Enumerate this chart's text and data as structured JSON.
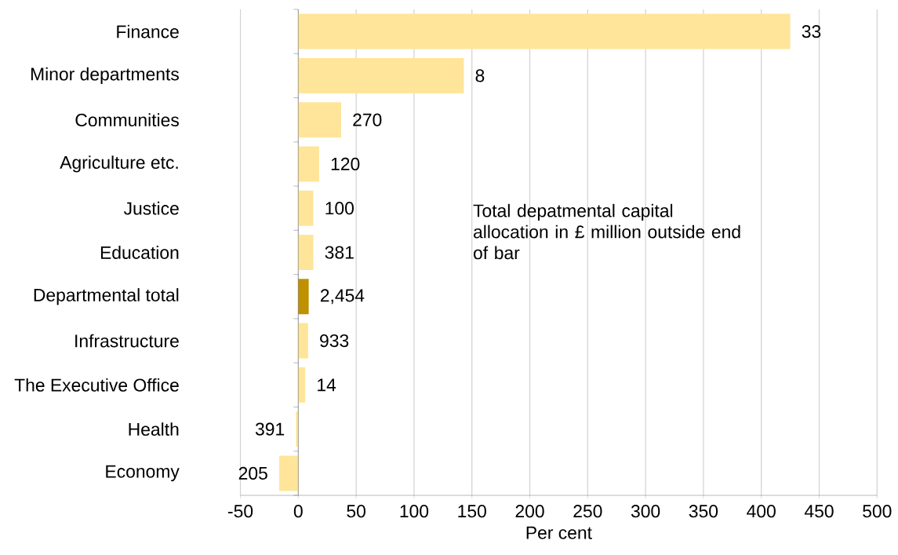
{
  "chart_data": {
    "type": "bar",
    "orientation": "horizontal",
    "xlabel": "Per cent",
    "categories": [
      "Finance",
      "Minor departments",
      "Communities",
      "Agriculture etc.",
      "Justice",
      "Education",
      "Departmental total",
      "Infrastructure",
      "The Executive Office",
      "Health",
      "Economy"
    ],
    "values": [
      425,
      143,
      37,
      18,
      13,
      13,
      9,
      8.5,
      6,
      -2,
      -16.5
    ],
    "colors": [
      "#ffe599",
      "#ffe599",
      "#ffe599",
      "#ffe599",
      "#ffe599",
      "#ffe599",
      "#bf9000",
      "#ffe599",
      "#ffe599",
      "#ffe599",
      "#ffe599"
    ],
    "xlim": [
      -50,
      500
    ],
    "xticks": [
      -50,
      0,
      50,
      100,
      150,
      200,
      250,
      300,
      350,
      400,
      450,
      500
    ],
    "grid": "x",
    "annotations": [
      "Total depatmental capital allocation in £ million outside end of bar",
      {
        "text": "33",
        "x": 425,
        "y": "Finance"
      },
      {
        "text": "8",
        "x": 143,
        "y": "Minor departments"
      },
      {
        "text": "270",
        "x": 37,
        "y": "Communities"
      },
      {
        "text": "120",
        "x": 18,
        "y": "Agriculture etc."
      },
      {
        "text": "100",
        "x": 13,
        "y": "Justice"
      },
      {
        "text": "381",
        "x": 13,
        "y": "Education"
      },
      {
        "text": "2,454",
        "x": 9,
        "y": "Departmental total"
      },
      {
        "text": "933",
        "x": 8.5,
        "y": "Infrastructure"
      },
      {
        "text": "14",
        "x": 6,
        "y": "The Executive Office"
      },
      {
        "text": "391",
        "x": -2,
        "y": "Health"
      },
      {
        "text": "205",
        "x": -16.5,
        "y": "Economy"
      }
    ]
  }
}
